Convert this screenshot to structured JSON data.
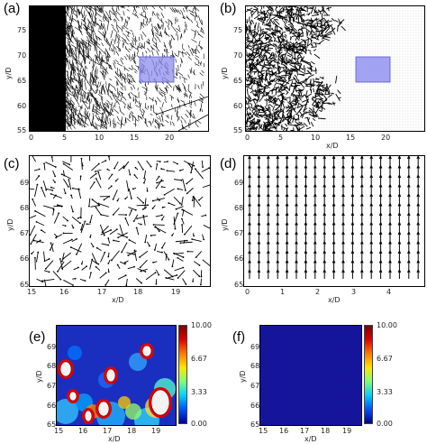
{
  "panels": {
    "a": {
      "label": "(a)",
      "xlabel": "x/D",
      "ylabel": "y/D",
      "xticks": [
        "0",
        "5",
        "10",
        "15",
        "20"
      ],
      "yticks": [
        "75",
        "70",
        "65",
        "60",
        "55"
      ]
    },
    "b": {
      "label": "(b)",
      "xlabel": "x/D",
      "ylabel": "y/D",
      "xticks": [
        "0",
        "5",
        "10",
        "15",
        "20"
      ],
      "yticks": [
        "75",
        "70",
        "65",
        "60",
        "55"
      ]
    },
    "c": {
      "label": "(c)",
      "xlabel": "x/D",
      "ylabel": "y/D",
      "xticks": [
        "15",
        "16",
        "17",
        "18",
        "19"
      ],
      "yticks": [
        "69",
        "68",
        "67",
        "66",
        "65"
      ]
    },
    "d": {
      "label": "(d)",
      "xlabel": "x/D",
      "ylabel": "y/D",
      "xticks": [
        "0",
        "1",
        "2",
        "3",
        "4"
      ],
      "yticks": [
        "69",
        "68",
        "67",
        "66",
        "65"
      ]
    },
    "e": {
      "label": "(e)",
      "xlabel": "x/D",
      "ylabel": "y/D",
      "xticks": [
        "15",
        "16",
        "17",
        "18",
        "19"
      ],
      "yticks": [
        "69",
        "68",
        "67",
        "66",
        "65"
      ],
      "colorbar": [
        "10.00",
        "6.67",
        "3.33",
        "0.00"
      ]
    },
    "f": {
      "label": "(f)",
      "xlabel": "x/D",
      "ylabel": "y/D",
      "xticks": [
        "15",
        "16",
        "17",
        "18",
        "19"
      ],
      "yticks": [
        "69",
        "68",
        "67",
        "66",
        "65"
      ],
      "colorbar": [
        "10.00",
        "6.67",
        "3.33",
        "0.00"
      ]
    }
  },
  "colors": {
    "highlight_box": "#8c8cf0",
    "field_low": "#1a2fbf",
    "field_high": "#c8102e"
  }
}
